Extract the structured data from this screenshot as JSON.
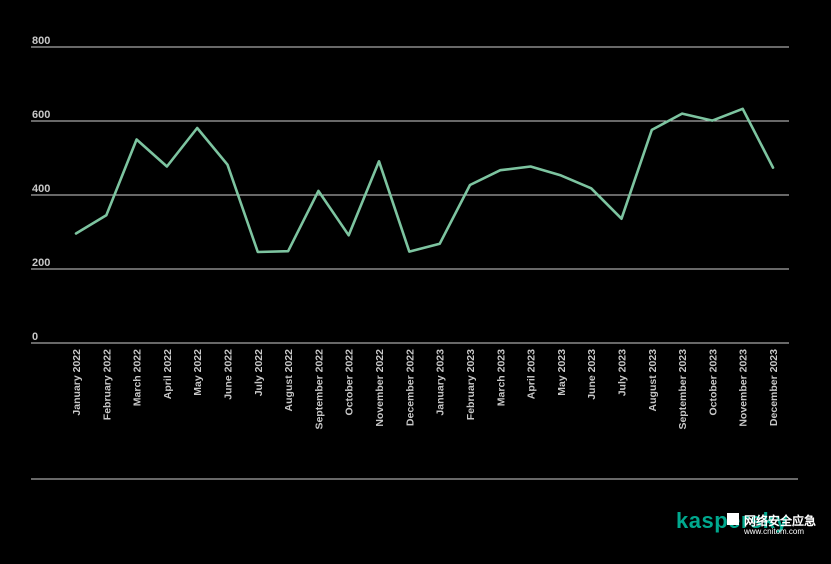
{
  "chart_data": {
    "type": "line",
    "title": "",
    "xlabel": "",
    "ylabel": "",
    "x": [
      "January 2022",
      "February 2022",
      "March 2022",
      "April 2022",
      "May 2022",
      "June 2022",
      "July 2022",
      "August 2022",
      "September 2022",
      "October 2022",
      "November 2022",
      "December 2022",
      "January 2023",
      "February 2023",
      "March 2023",
      "April 2023",
      "May 2023",
      "June 2023",
      "July 2023",
      "August 2023",
      "September 2023",
      "October 2023",
      "November 2023",
      "December 2023"
    ],
    "series": [
      {
        "values": [
          296,
          345,
          550,
          477,
          581,
          482,
          246,
          248,
          411,
          291,
          491,
          247,
          268,
          427,
          467,
          477,
          453,
          418,
          336,
          576,
          620,
          601,
          633,
          474
        ],
        "color": "#7dc4a0"
      }
    ],
    "y_ticks": [
      "0",
      "200",
      "400",
      "600",
      "800"
    ],
    "ylim": [
      0,
      800
    ],
    "grid": true,
    "legend": "none"
  },
  "watermark": {
    "logo": "kaspersky",
    "cn_text": "网络安全应急",
    "url": "www.cnitom.com",
    "brand_color": "#00a88e"
  }
}
